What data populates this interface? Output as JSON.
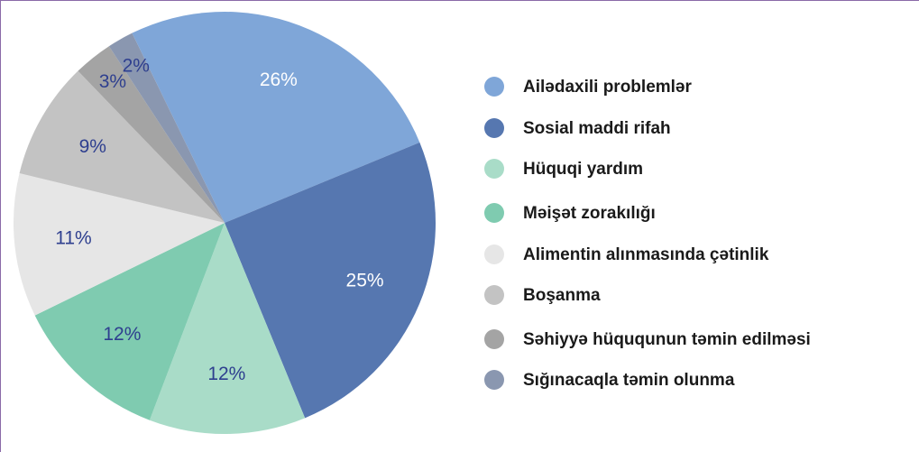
{
  "chart_data": {
    "type": "pie",
    "categories": [
      "Ailədaxili problemlər",
      "Sosial maddi rifah",
      "Hüquqi yardım",
      "Məişət zorakılığı",
      "Alimentin alınmasında çətinlik",
      "Boşanma",
      "Səhiyyə hüququnun təmin edilməsi",
      "Sığınacaqla təmin olunma"
    ],
    "values": [
      26,
      25,
      12,
      12,
      11,
      9,
      3,
      2
    ],
    "value_labels": [
      "26%",
      "25%",
      "12%",
      "12%",
      "11%",
      "9%",
      "3%",
      "2%"
    ],
    "colors": [
      "#7fa6d8",
      "#5677b0",
      "#a9dcc8",
      "#7fcbb0",
      "#e6e6e6",
      "#c3c3c3",
      "#a4a4a4",
      "#8a97b0"
    ],
    "value_label_colors": [
      "#ffffff",
      "#ffffff",
      "#2e3f8f",
      "#2e3f8f",
      "#2e3f8f",
      "#2e3f8f",
      "#2e3f8f",
      "#2e3f8f"
    ]
  }
}
